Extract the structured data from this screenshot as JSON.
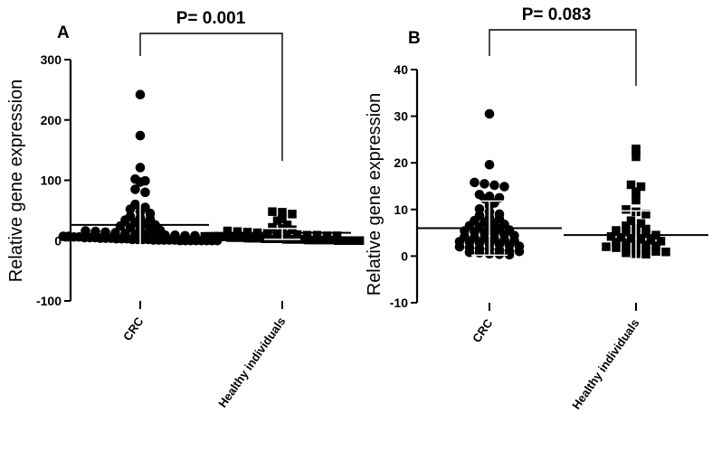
{
  "chart_data": [
    {
      "type": "scatter",
      "subtype": "dot-plot-with-mean-sd",
      "panel_label": "A",
      "title": "",
      "xlabel": "",
      "ylabel": "Relative gene expression",
      "ylim": [
        -100,
        300
      ],
      "yticks": [
        -100,
        0,
        100,
        200,
        300
      ],
      "categories": [
        "CRC",
        "Healthy individuals"
      ],
      "significance": {
        "text": "P= 0.001",
        "between": [
          "CRC",
          "Healthy individuals"
        ]
      },
      "marker_shapes": [
        "circle",
        "square"
      ],
      "series": [
        {
          "name": "CRC",
          "mean": 26,
          "sd_low": -15,
          "sd_high": 69,
          "values": [
            242,
            174,
            121,
            102,
            99,
            97,
            85,
            80,
            60,
            55,
            52,
            48,
            45,
            40,
            38,
            36,
            34,
            30,
            28,
            26,
            24,
            22,
            20,
            18,
            17,
            16,
            15,
            14,
            13,
            12,
            11,
            10,
            10,
            9,
            9,
            8,
            8,
            7,
            7,
            6,
            6,
            5,
            5,
            5,
            4,
            4,
            4,
            3,
            3,
            3,
            2,
            2,
            2,
            2,
            1,
            1,
            1,
            1,
            1,
            0,
            0,
            0,
            0,
            0,
            0,
            0,
            0
          ]
        },
        {
          "name": "Healthy individuals",
          "mean": 13,
          "sd_low": 2,
          "sd_high": 20,
          "values": [
            48,
            47,
            44,
            36,
            33,
            26,
            22,
            20,
            18,
            16,
            15,
            14,
            13,
            12,
            11,
            10,
            10,
            9,
            9,
            8,
            8,
            7,
            7,
            7,
            6,
            6,
            6,
            5,
            5,
            5,
            5,
            4,
            4,
            4,
            4,
            3,
            3,
            3,
            3,
            3,
            2,
            2,
            2,
            2,
            2,
            1,
            1,
            1,
            1,
            1,
            1,
            1,
            0,
            0,
            0,
            0,
            0,
            0
          ]
        }
      ]
    },
    {
      "type": "scatter",
      "subtype": "dot-plot-with-mean-sd",
      "panel_label": "B",
      "title": "",
      "xlabel": "",
      "ylabel": "Relative gene expression",
      "ylim": [
        -10,
        40
      ],
      "yticks": [
        -10,
        0,
        10,
        20,
        30,
        40
      ],
      "categories": [
        "CRC",
        "Healthy individuals"
      ],
      "significance": {
        "text": "P= 0.083",
        "between": [
          "CRC",
          "Healthy individuals"
        ]
      },
      "marker_shapes": [
        "circle",
        "square"
      ],
      "series": [
        {
          "name": "CRC",
          "mean": 6,
          "sd_low": 0.2,
          "sd_high": 11.8,
          "values": [
            30.5,
            19.6,
            15.8,
            15.5,
            15.2,
            14.9,
            13.2,
            12.8,
            12.5,
            12.3,
            11.4,
            10.8,
            10.1,
            9.5,
            9.0,
            8.7,
            8.3,
            8.0,
            7.6,
            7.3,
            7.0,
            6.8,
            6.5,
            6.2,
            6.0,
            5.8,
            5.6,
            5.4,
            5.2,
            5.0,
            4.8,
            4.6,
            4.4,
            4.2,
            4.0,
            3.9,
            3.7,
            3.5,
            3.3,
            3.1,
            3.0,
            2.8,
            2.6,
            2.5,
            2.3,
            2.1,
            2.0,
            1.8,
            1.6,
            1.5,
            1.3,
            1.1,
            1.0,
            0.8,
            0.7,
            0.5,
            0.4,
            0.3
          ]
        },
        {
          "name": "Healthy individuals",
          "mean": 4.5,
          "sd_low": -1.2,
          "sd_high": 9.7,
          "values": [
            23.0,
            22.6,
            21.3,
            15.3,
            14.9,
            13.8,
            13.4,
            12.0,
            10.0,
            9.5,
            9.0,
            7.6,
            7.0,
            6.5,
            6.0,
            5.8,
            5.5,
            5.2,
            5.0,
            4.8,
            4.5,
            4.2,
            4.0,
            3.8,
            3.6,
            3.4,
            3.2,
            3.0,
            2.8,
            2.6,
            2.4,
            2.2,
            2.0,
            1.8,
            1.6,
            1.4,
            1.2,
            1.0,
            0.9,
            0.7,
            0.5,
            0.4
          ]
        }
      ]
    }
  ]
}
